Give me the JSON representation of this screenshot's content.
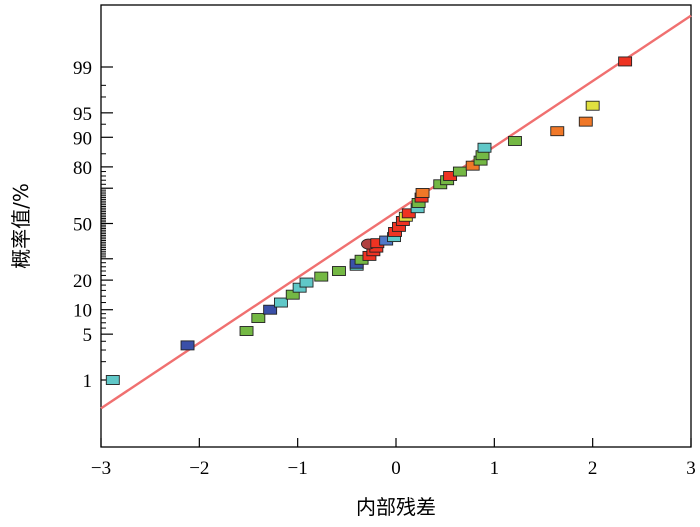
{
  "chart_data": {
    "type": "scatter",
    "title": "",
    "xlabel": "内部残差",
    "ylabel": "概率值/%",
    "xlim": [
      -3,
      3
    ],
    "xticks": [
      -3,
      -2,
      -1,
      0,
      1,
      2,
      3
    ],
    "xtick_labels": [
      "−3",
      "−2",
      "−1",
      "0",
      "1",
      "2",
      "3"
    ],
    "yaxis_scale": "normal-probability",
    "yticks": [
      1,
      5,
      10,
      20,
      30,
      50,
      70,
      80,
      90,
      95,
      99
    ],
    "ytick_labels": [
      "1",
      "5",
      "10",
      "20",
      "",
      "50",
      "",
      "80",
      "90",
      "95",
      "99"
    ],
    "reference_line": {
      "color": "#f07070",
      "points": [
        [
          -3,
          0.3
        ],
        [
          3,
          99.9
        ]
      ]
    },
    "marker_colors": {
      "cyan": "#60c8c8",
      "navy": "#3a50a8",
      "green": "#74b844",
      "red": "#ee3322",
      "orange": "#f07828",
      "yellow": "#e0e040",
      "blue": "#5078c8",
      "maroon": "#b04040"
    },
    "points": [
      {
        "x": -2.88,
        "y": 1,
        "color": "cyan"
      },
      {
        "x": -2.12,
        "y": 3.5,
        "color": "navy"
      },
      {
        "x": -1.52,
        "y": 5.5,
        "color": "green"
      },
      {
        "x": -1.4,
        "y": 8,
        "color": "green"
      },
      {
        "x": -1.28,
        "y": 10,
        "color": "navy"
      },
      {
        "x": -1.17,
        "y": 12,
        "color": "cyan"
      },
      {
        "x": -1.05,
        "y": 14.5,
        "color": "green"
      },
      {
        "x": -0.98,
        "y": 17,
        "color": "cyan"
      },
      {
        "x": -0.91,
        "y": 19,
        "color": "cyan"
      },
      {
        "x": -0.76,
        "y": 21.5,
        "color": "green"
      },
      {
        "x": -0.58,
        "y": 24,
        "color": "green"
      },
      {
        "x": -0.4,
        "y": 26.5,
        "color": "cyan"
      },
      {
        "x": -0.4,
        "y": 27.5,
        "color": "navy"
      },
      {
        "x": -0.35,
        "y": 29.5,
        "color": "green"
      },
      {
        "x": -0.27,
        "y": 31.5,
        "color": "red"
      },
      {
        "x": -0.23,
        "y": 34,
        "color": "red"
      },
      {
        "x": -0.2,
        "y": 36,
        "color": "red"
      },
      {
        "x": -0.28,
        "y": 38,
        "color": "maroon",
        "shape": "circle"
      },
      {
        "x": -0.19,
        "y": 38.5,
        "color": "red"
      },
      {
        "x": -0.1,
        "y": 40,
        "color": "blue"
      },
      {
        "x": -0.02,
        "y": 42,
        "color": "cyan"
      },
      {
        "x": -0.01,
        "y": 45,
        "color": "red"
      },
      {
        "x": 0.03,
        "y": 48,
        "color": "red"
      },
      {
        "x": 0.07,
        "y": 51.5,
        "color": "red"
      },
      {
        "x": 0.1,
        "y": 54,
        "color": "yellow"
      },
      {
        "x": 0.13,
        "y": 56,
        "color": "red"
      },
      {
        "x": 0.22,
        "y": 59,
        "color": "cyan"
      },
      {
        "x": 0.23,
        "y": 62,
        "color": "green"
      },
      {
        "x": 0.26,
        "y": 65,
        "color": "red"
      },
      {
        "x": 0.27,
        "y": 67.5,
        "color": "orange"
      },
      {
        "x": 0.45,
        "y": 72,
        "color": "green"
      },
      {
        "x": 0.52,
        "y": 74,
        "color": "green"
      },
      {
        "x": 0.55,
        "y": 76,
        "color": "red"
      },
      {
        "x": 0.65,
        "y": 78,
        "color": "green"
      },
      {
        "x": 0.78,
        "y": 80.5,
        "color": "orange"
      },
      {
        "x": 0.86,
        "y": 82.5,
        "color": "green"
      },
      {
        "x": 0.88,
        "y": 84.5,
        "color": "green"
      },
      {
        "x": 0.9,
        "y": 87,
        "color": "cyan"
      },
      {
        "x": 1.21,
        "y": 89,
        "color": "green"
      },
      {
        "x": 1.64,
        "y": 91.5,
        "color": "orange"
      },
      {
        "x": 1.93,
        "y": 93.5,
        "color": "orange"
      },
      {
        "x": 2.0,
        "y": 96,
        "color": "yellow"
      },
      {
        "x": 2.33,
        "y": 99.2,
        "color": "red"
      }
    ]
  }
}
